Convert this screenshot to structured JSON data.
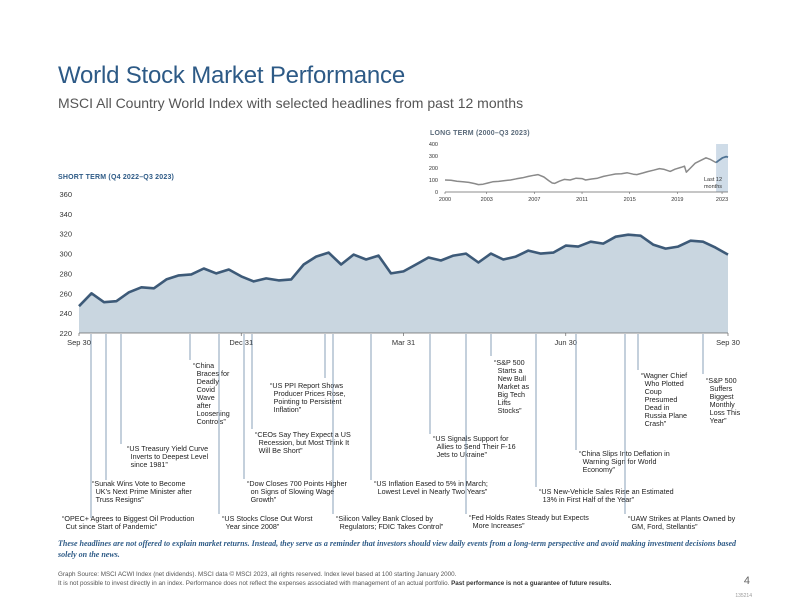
{
  "header": {
    "title": "World Stock Market Performance",
    "subtitle": "MSCI All Country World Index with selected headlines from past 12 months"
  },
  "chart_data": [
    {
      "type": "line",
      "title": "LONG TERM (2000–Q3 2023)",
      "x_tick_labels": [
        "2000",
        "2003",
        "2007",
        "2011",
        "2015",
        "2019",
        "2023"
      ],
      "y_tick_labels": [
        "0",
        "100",
        "200",
        "300",
        "400"
      ],
      "ylim": [
        0,
        400
      ],
      "highlight_label": "Last 12 months",
      "series": [
        {
          "x": [
            2000.0,
            2000.5,
            2001.0,
            2001.5,
            2002.0,
            2002.5,
            2002.8,
            2003.2,
            2003.6,
            2004.0,
            2004.5,
            2005.0,
            2005.5,
            2006.0,
            2006.5,
            2007.0,
            2007.5,
            2007.8,
            2008.3,
            2008.7,
            2009.0,
            2009.2,
            2009.6,
            2010.0,
            2010.5,
            2011.0,
            2011.5,
            2011.8,
            2012.3,
            2012.8,
            2013.3,
            2013.8,
            2014.3,
            2014.8,
            2015.3,
            2015.8,
            2016.1,
            2016.6,
            2017.0,
            2017.5,
            2018.0,
            2018.4,
            2018.9,
            2019.3,
            2019.8,
            2020.1,
            2020.25,
            2020.6,
            2021.0,
            2021.5,
            2021.9,
            2022.3,
            2022.75,
            2023.0,
            2023.3,
            2023.6,
            2023.75
          ],
          "y": [
            100,
            98,
            90,
            85,
            80,
            70,
            62,
            65,
            75,
            85,
            88,
            95,
            100,
            110,
            118,
            130,
            140,
            145,
            125,
            95,
            75,
            72,
            90,
            105,
            100,
            115,
            112,
            100,
            108,
            115,
            130,
            140,
            150,
            152,
            160,
            148,
            145,
            158,
            170,
            182,
            195,
            188,
            172,
            190,
            205,
            215,
            165,
            200,
            240,
            265,
            285,
            270,
            245,
            265,
            285,
            295,
            290
          ]
        }
      ]
    },
    {
      "type": "line",
      "title": "SHORT TERM (Q4 2022–Q3 2023)",
      "x_tick_labels": [
        "Sep 30",
        "Dec 31",
        "Mar 31",
        "Jun 30",
        "Sep 30"
      ],
      "y_tick_labels": [
        "220",
        "240",
        "260",
        "280",
        "300",
        "320",
        "340",
        "360"
      ],
      "ylim": [
        220,
        360
      ],
      "series": [
        {
          "x": [
            0,
            1,
            2,
            3,
            4,
            5,
            6,
            7,
            8,
            9,
            10,
            11,
            12,
            13,
            14,
            15,
            16,
            17,
            18,
            19,
            20,
            21,
            22,
            23,
            24,
            25,
            26,
            27,
            28,
            29,
            30,
            31,
            32,
            33,
            34,
            35,
            36,
            37,
            38,
            39,
            40,
            41,
            42,
            43,
            44,
            45,
            46,
            47,
            48,
            49,
            50,
            51,
            52
          ],
          "y": [
            247,
            260,
            251,
            252,
            261,
            266,
            265,
            274,
            278,
            279,
            285,
            280,
            284,
            277,
            272,
            275,
            273,
            274,
            289,
            297,
            301,
            289,
            299,
            294,
            298,
            280,
            282,
            289,
            296,
            293,
            298,
            300,
            291,
            300,
            294,
            297,
            303,
            300,
            301,
            308,
            307,
            312,
            310,
            317,
            319,
            318,
            309,
            305,
            307,
            313,
            312,
            306,
            299
          ]
        }
      ],
      "headlines": [
        "“OPEC+ Agrees to Biggest Oil Production Cut since Start of Pandemic”",
        "“Sunak Wins Vote to Become UK’s Next Prime Minister after Truss Resigns”",
        "“US Treasury Yield Curve Inverts to Deepest Level since 1981”",
        "“China Braces for Deadly Covid Wave after Loosening Controls”",
        "“US Stocks Close Out Worst Year since 2008”",
        "“Dow Closes 700 Points Higher on Signs of Slowing Wage Growth”",
        "“CEOs Say They Expect a US Recession, but Most Think It Will Be Short”",
        "“US PPI Report Shows Producer Prices Rose, Pointing to Persistent Inflation”",
        "“Silicon Valley Bank Closed by Regulators; FDIC Takes Control”",
        "“US Inflation Eased to 5% in March; Lowest Level in Nearly Two Years”",
        "“US Signals Support for Allies to Send Their F-16 Jets to Ukraine”",
        "“Fed Holds Rates Steady but Expects More Increases”",
        "“S&P 500 Starts a New Bull Market as Big Tech Lifts Stocks”",
        "“US New-Vehicle Sales Rise an Estimated 13% in First Half of the Year”",
        "“China Slips Into Deflation in Warning Sign for World Economy”",
        "“Wagner Chief Who Plotted Coup Presumed Dead in Russia Plane Crash”",
        "“UAW Strikes at Plants Owned by GM, Ford, Stellantis”",
        "“S&P 500 Suffers Biggest Monthly Loss This Year”"
      ]
    }
  ],
  "footer": {
    "disclaimer": "These headlines are not offered to explain market returns. Instead, they serve as a reminder that investors should view daily events from a long-term perspective and avoid making investment decisions based solely on the news.",
    "source_line": "Graph Source: MSCI ACWI Index (net dividends). MSCI data © MSCI 2023, all rights reserved. Index level based at 100 starting January 2000.",
    "disclosure_line": "It is not possible to invest directly in an index. Performance does not reflect the expenses associated with management of an actual portfolio.",
    "disclosure_bold": "Past performance is not a guarantee of future results.",
    "page_number": "4",
    "doc_code": "135214"
  },
  "colors": {
    "title_blue": "#2d5a86",
    "short_line": "#3d5a78",
    "short_fill": "#c9d6e0",
    "long_line": "#8a8a8a",
    "highlight_band": "#cfdce8",
    "long_recent_line": "#4f7394"
  }
}
